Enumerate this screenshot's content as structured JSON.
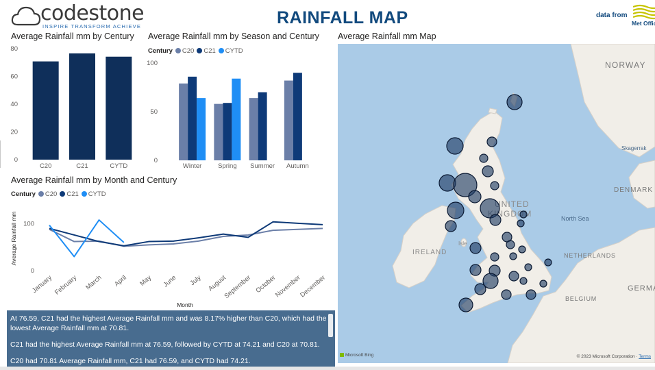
{
  "header": {
    "logo_text": "codestone",
    "logo_tagline": "INSPIRE  TRANSFORM  ACHIEVE",
    "title": "RAINFALL MAP",
    "data_from": "data from",
    "metoffice": "Met Office"
  },
  "colors": {
    "c20": "#6b7fa8",
    "c21": "#0e3a78",
    "cytd": "#1f8ef5",
    "century_bar": "#0f2f5a"
  },
  "visual_century": {
    "title": "Average Rainfall mm by Century",
    "chart_data": {
      "type": "bar",
      "categories": [
        "C20",
        "C21",
        "CYTD"
      ],
      "values": [
        70.81,
        76.59,
        74.21
      ],
      "ylim": [
        0,
        80
      ],
      "yticks": [
        "0",
        "20",
        "40",
        "60",
        "80"
      ]
    }
  },
  "visual_season": {
    "title": "Average Rainfall mm by Season and Century",
    "legend_title": "Century",
    "chart_data": {
      "type": "bar",
      "categories": [
        "Winter",
        "Spring",
        "Summer",
        "Autumn"
      ],
      "series": [
        {
          "name": "C20",
          "values": [
            79,
            58,
            64,
            82
          ]
        },
        {
          "name": "C21",
          "values": [
            86,
            59,
            70,
            90
          ]
        },
        {
          "name": "CYTD",
          "values": [
            64,
            84,
            null,
            null
          ]
        }
      ],
      "ylim": [
        0,
        100
      ],
      "yticks": [
        "0",
        "50",
        "100"
      ]
    }
  },
  "visual_month": {
    "title": "Average Rainfall mm by Month and Century",
    "legend_title": "Century",
    "ylabel": "Average Rainfall mm",
    "xlabel": "Month",
    "chart_data": {
      "type": "line",
      "categories": [
        "January",
        "February",
        "March",
        "April",
        "May",
        "June",
        "July",
        "August",
        "September",
        "October",
        "November",
        "December"
      ],
      "series": [
        {
          "name": "C20",
          "values": [
            88,
            62,
            63,
            52,
            55,
            57,
            63,
            73,
            76,
            86,
            88,
            90
          ]
        },
        {
          "name": "C21",
          "values": [
            90,
            76,
            62,
            53,
            62,
            63,
            70,
            78,
            71,
            104,
            101,
            98
          ]
        },
        {
          "name": "CYTD",
          "values": [
            97,
            30,
            108,
            60,
            null,
            null,
            null,
            null,
            null,
            null,
            null,
            null
          ]
        }
      ],
      "ylim": [
        0,
        130
      ],
      "yticks": [
        "0",
        "100"
      ]
    }
  },
  "narrative": {
    "p1": "At 76.59, C21 had the highest Average Rainfall mm and was 8.17% higher than C20, which had the lowest Average Rainfall mm at 70.81.",
    "p2": "C21 had the highest Average Rainfall mm at 76.59, followed by CYTD at 74.21 and C20 at 70.81.",
    "p3": "C20 had 70.81 Average Rainfall mm, C21 had 76.59, and CYTD had 74.21."
  },
  "map": {
    "title": "Average Rainfall mm Map",
    "labels": {
      "norway": "NORWAY",
      "skagerrak": "Skagerrak",
      "denmark": "DENMARK",
      "united": "UNITED",
      "kingdom": "KINGDOM",
      "north_sea": "North Sea",
      "ireland": "IRELAND",
      "isle": "Isle",
      "netherlands": "NETHERLANDS",
      "belgium": "BELGIUM",
      "germany": "GERMA"
    },
    "bing": "Microsoft Bing",
    "copyright": "© 2023 Microsoft Corporation",
    "terms": "Terms"
  }
}
